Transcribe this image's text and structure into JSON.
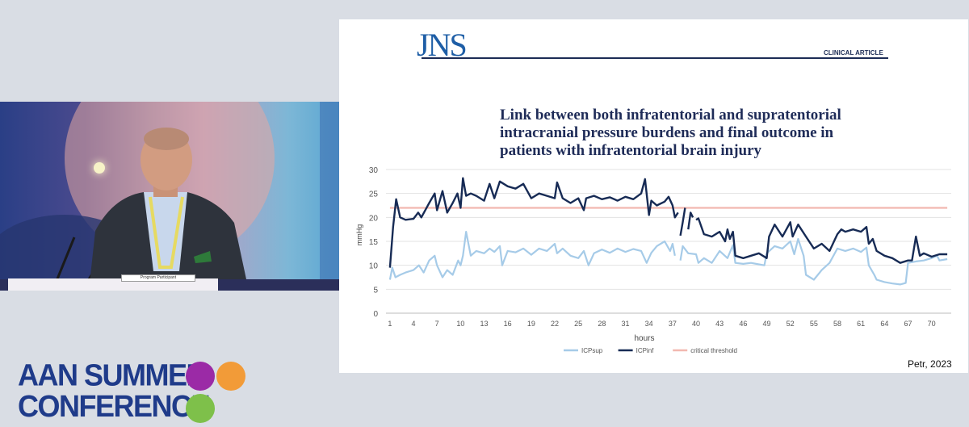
{
  "slide": {
    "journal": "JNS",
    "section": "CLINICAL ARTICLE",
    "title_lines": [
      "Link between both infratentorial and supratentorial",
      "intracranial pressure burdens and final outcome in",
      "patients with infratentorial brain injury"
    ],
    "credit": "Petr, 2023"
  },
  "badge": {
    "text": "Program Participant"
  },
  "conference": {
    "line1": "AAN SUMMER",
    "line2": "CONFERENCE"
  },
  "colors": {
    "purple": "#9b2aa6",
    "orange": "#f29b38",
    "green": "#7ec04a",
    "navy": "#1f3b8a",
    "icp_sup": "#a6cbe8",
    "icp_inf": "#172b55",
    "threshold": "#f2b8b0"
  },
  "chart_data": {
    "type": "line",
    "xlabel": "hours",
    "ylabel": "mmHg",
    "ylim": [
      0,
      30
    ],
    "yticks": [
      0,
      5,
      10,
      15,
      20,
      25,
      30
    ],
    "xticks": [
      1,
      4,
      7,
      10,
      13,
      16,
      19,
      22,
      25,
      28,
      31,
      34,
      37,
      40,
      43,
      46,
      49,
      52,
      55,
      58,
      61,
      64,
      67,
      70
    ],
    "xlim": [
      0.5,
      72.5
    ],
    "grid": true,
    "legend": "bottom",
    "series": [
      {
        "name": "ICPsup",
        "color": "#a6cbe8",
        "x": [
          1,
          1.3,
          1.7,
          2.3,
          3,
          4,
          4.7,
          5.3,
          6,
          6.7,
          7,
          7.7,
          8.3,
          9,
          9.7,
          10,
          10.3,
          10.7,
          11.3,
          12,
          13,
          13.7,
          14.3,
          15,
          15.3,
          16,
          17,
          18,
          19,
          20,
          21,
          22,
          22.3,
          23,
          24,
          25,
          25.7,
          26.3,
          27,
          28,
          29,
          30,
          31,
          32,
          33,
          33.7,
          34.3,
          35,
          36,
          36.7,
          37,
          37.3,
          null,
          38,
          38.3,
          39,
          40,
          40.3,
          41,
          42,
          43,
          44,
          44.7,
          45,
          46,
          47,
          48,
          48.7,
          49,
          50,
          51,
          52,
          52.5,
          53,
          53.7,
          54,
          55,
          56,
          57,
          58,
          59,
          60,
          61,
          61.7,
          62,
          62.7,
          63,
          64,
          65,
          66,
          66.7,
          67,
          68,
          69,
          70,
          70.7,
          71,
          72
        ],
        "y": [
          7,
          9.5,
          7.5,
          8,
          8.5,
          9,
          10,
          8.5,
          11,
          12,
          10,
          7.5,
          9,
          8,
          11,
          10,
          12,
          17,
          12,
          13,
          12.5,
          13.5,
          12.8,
          14,
          10,
          13,
          12.7,
          13.5,
          12.2,
          13.5,
          13,
          14.5,
          12.5,
          13.5,
          12,
          11.5,
          13,
          10,
          12.5,
          13.3,
          12.6,
          13.5,
          12.8,
          13.4,
          13,
          10.5,
          12.6,
          14,
          15,
          13,
          14.5,
          12,
          null,
          11,
          14,
          12.5,
          12.3,
          10.5,
          11.5,
          10.5,
          13,
          11.5,
          14.2,
          10.5,
          10.3,
          10.5,
          10.2,
          10,
          12.5,
          14,
          13.5,
          15,
          12.3,
          15.5,
          12,
          8,
          7,
          9,
          10.5,
          13.5,
          13,
          13.5,
          12.8,
          13.7,
          10,
          8,
          7,
          6.5,
          6.2,
          6,
          6.3,
          10.5,
          10.8,
          11,
          11.5,
          12,
          11,
          11.3
        ]
      },
      {
        "name": "ICPinf",
        "color": "#172b55",
        "x": [
          1,
          1.4,
          1.8,
          2.3,
          3,
          4,
          4.6,
          5,
          6,
          6.7,
          7,
          7.7,
          8.3,
          9,
          9.6,
          10,
          10.3,
          10.7,
          11.3,
          12,
          13,
          13.7,
          14.3,
          15,
          16,
          17,
          18,
          19,
          20,
          21,
          22,
          22.3,
          23,
          24,
          25,
          25.7,
          26,
          27,
          28,
          29,
          30,
          31,
          32,
          33,
          33.5,
          34,
          34.3,
          35,
          36,
          36.5,
          37,
          37.3,
          37.7,
          null,
          38,
          38.3,
          38.6,
          null,
          39,
          39.3,
          39.6,
          null,
          40,
          40.3,
          41,
          42,
          43,
          43.7,
          44,
          44.3,
          44.7,
          45,
          46,
          47,
          48,
          49,
          49.3,
          50,
          51,
          52,
          52.3,
          53,
          54,
          55,
          56,
          57,
          58,
          58.5,
          59,
          60,
          61,
          61.7,
          62,
          62.5,
          63,
          64,
          65,
          66,
          67,
          67.5,
          68,
          68.5,
          69,
          70,
          71,
          72
        ],
        "y": [
          9.5,
          18,
          23.8,
          20,
          19.5,
          19.7,
          21,
          20,
          23,
          25,
          21.5,
          25.5,
          21,
          23,
          25,
          22,
          28.2,
          24.5,
          25,
          24.5,
          23.5,
          27,
          24,
          27.5,
          26.5,
          26,
          27,
          24,
          25,
          24.5,
          24,
          27.3,
          24,
          23,
          24,
          21.5,
          24,
          24.5,
          23.8,
          24.2,
          23.5,
          24.3,
          23.8,
          25,
          28,
          20.5,
          23.5,
          22.5,
          23.3,
          24.3,
          22.5,
          20,
          21,
          null,
          16.2,
          19,
          22,
          null,
          17.5,
          21,
          20,
          null,
          19.5,
          19.8,
          16.5,
          16,
          17,
          15,
          17.5,
          15.5,
          17,
          12,
          11.5,
          12,
          12.5,
          11.5,
          16,
          18.5,
          16,
          19,
          16,
          18.5,
          16,
          13.5,
          14.5,
          13,
          16.5,
          17.5,
          17,
          17.5,
          17,
          18,
          14.5,
          15.5,
          13,
          12,
          11.5,
          10.5,
          11,
          11,
          16,
          12,
          12.5,
          11.8,
          12.3,
          12.3
        ]
      },
      {
        "name": "critical threshold",
        "color": "#f2b8b0",
        "x": [
          1,
          72
        ],
        "y": [
          22,
          22
        ]
      }
    ]
  }
}
